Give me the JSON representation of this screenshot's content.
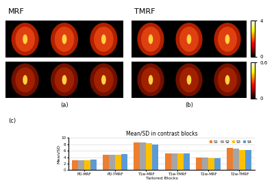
{
  "panels": [
    {
      "label": "(a)",
      "title": "MRF"
    },
    {
      "label": "(b)",
      "title": "TMRF"
    }
  ],
  "colorbars": [
    {
      "range": [
        0,
        4
      ],
      "ticks": [
        0,
        4
      ]
    },
    {
      "range": [
        0,
        0.6
      ],
      "ticks": [
        0,
        0.6
      ]
    }
  ],
  "chart_label": "(c)",
  "chart_data": {
    "type": "bar",
    "title": "Mean/SD in contrast blocks",
    "x_label": "Tailored Blocks",
    "y_label": "Mean/SD",
    "categories": [
      "PD-MRF",
      "PD-TMRF",
      "T1w-MRF",
      "T1w-TMRF",
      "T2w-MRF",
      "T2w-TMRF"
    ],
    "series": [
      {
        "name": "S1",
        "color": "#ed7d31",
        "values": [
          3.0,
          4.8,
          8.7,
          5.3,
          3.9,
          6.8
        ]
      },
      {
        "name": "S2",
        "color": "#a5a5a5",
        "values": [
          3.0,
          4.8,
          8.7,
          5.3,
          3.9,
          6.6
        ]
      },
      {
        "name": "S3",
        "color": "#ffc000",
        "values": [
          3.0,
          4.7,
          8.3,
          5.2,
          3.8,
          6.2
        ]
      },
      {
        "name": "S4",
        "color": "#5b9bd5",
        "values": [
          3.2,
          4.9,
          7.9,
          5.1,
          3.8,
          6.2
        ]
      }
    ],
    "ylim": [
      0,
      10
    ],
    "yticks": [
      0,
      2,
      4,
      6,
      8,
      10
    ],
    "grid": true,
    "legend": "upper right"
  }
}
